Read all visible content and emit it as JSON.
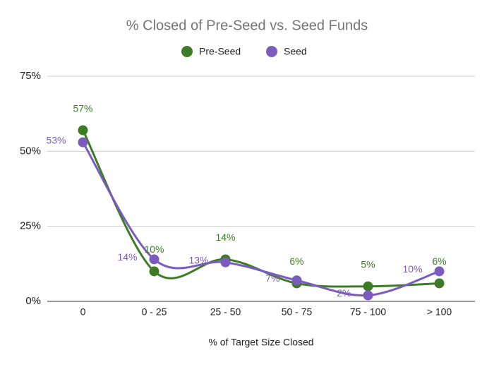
{
  "chart_data": {
    "type": "line",
    "title": "% Closed of Pre-Seed vs. Seed Funds",
    "x_label": "% of Target Size Closed",
    "categories": [
      "0",
      "0 - 25",
      "25 - 50",
      "50 - 75",
      "75 - 100",
      "> 100"
    ],
    "series": [
      {
        "name": "Pre-Seed",
        "color": "#3d7c25",
        "values": [
          57,
          10,
          14,
          6,
          5,
          6
        ],
        "value_labels": [
          "57%",
          "10%",
          "14%",
          "6%",
          "5%",
          "6%"
        ]
      },
      {
        "name": "Seed",
        "color": "#7b5bbd",
        "values": [
          53,
          14,
          13,
          7,
          2,
          10
        ],
        "value_labels": [
          "53%",
          "14%",
          "13%",
          "7%",
          "2%",
          "10%"
        ]
      }
    ],
    "ylim": [
      0,
      75
    ],
    "yticks": [
      {
        "value": 0,
        "label": "0%"
      },
      {
        "value": 25,
        "label": "25%"
      },
      {
        "value": 50,
        "label": "50%"
      },
      {
        "value": 75,
        "label": "75%"
      }
    ],
    "grid": true,
    "legend": "top",
    "smooth": true
  }
}
